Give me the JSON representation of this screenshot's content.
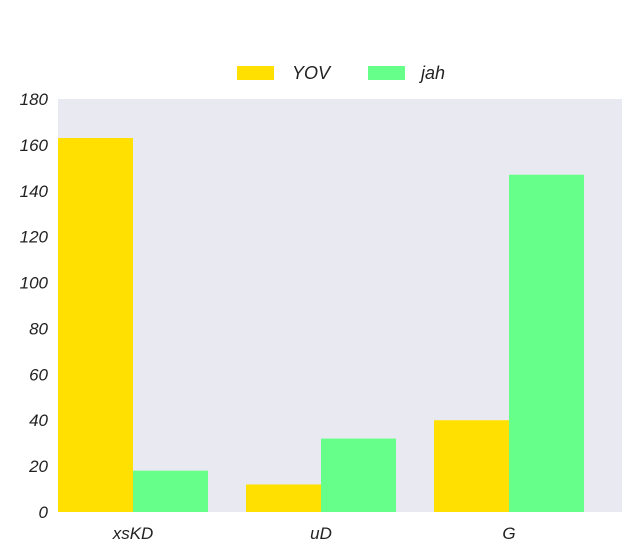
{
  "chart_data": {
    "type": "bar",
    "title": "",
    "xlabel": "",
    "ylabel": "",
    "categories": [
      "xsKD",
      "uD",
      "G"
    ],
    "series": [
      {
        "name": "YOV",
        "values": [
          163,
          12,
          40
        ],
        "color": "#ffe000"
      },
      {
        "name": "jah",
        "values": [
          18,
          32,
          147
        ],
        "color": "#66ff8a"
      }
    ],
    "ylim": [
      0,
      180
    ],
    "yticks": [
      0,
      20,
      40,
      60,
      80,
      100,
      120,
      140,
      160,
      180
    ],
    "grid": false,
    "legend": "top-center",
    "background": "#e8e9f1"
  }
}
